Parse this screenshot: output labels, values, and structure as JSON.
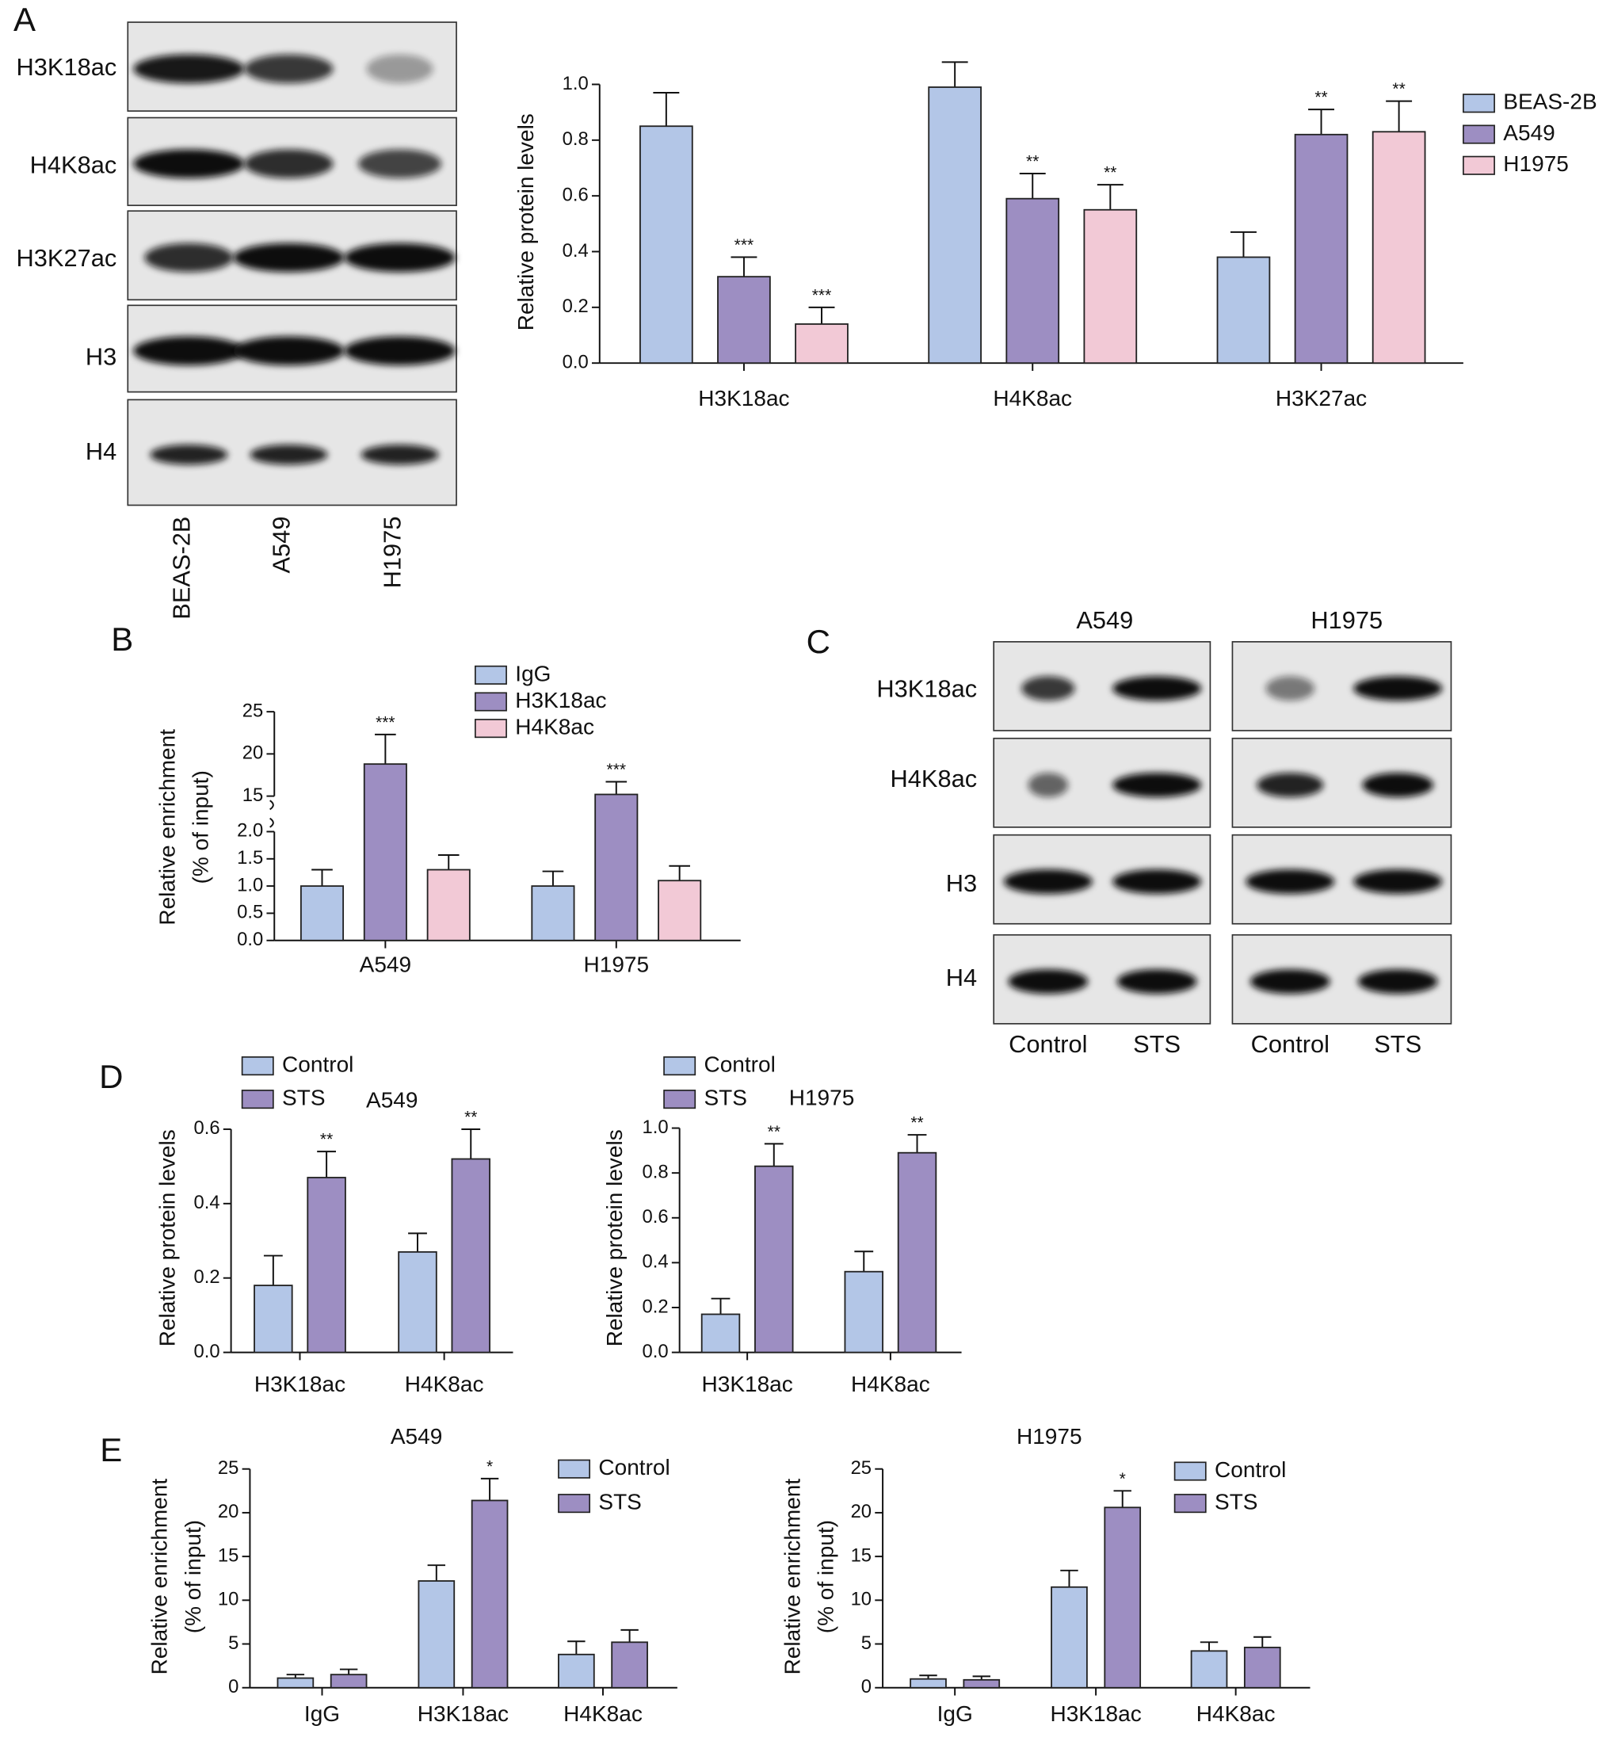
{
  "panels": [
    "A",
    "B",
    "C",
    "D",
    "E"
  ],
  "blots": [
    {
      "rows": [
        "H3K18ac",
        "H4K8ac",
        "H3K27ac",
        "H3",
        "H4"
      ],
      "lanes": [
        "BEAS-2B",
        "A549",
        "H1975"
      ]
    },
    {
      "groups": [
        "A549",
        "H1975"
      ],
      "rows": [
        "H3K18ac",
        "H4K8ac",
        "H3",
        "H4"
      ],
      "lanes": [
        "Control",
        "STS",
        "Control",
        "STS"
      ]
    }
  ],
  "chart_data": [
    {
      "type": "bar",
      "ylabel": [
        "Relative protein levels"
      ],
      "categories": [
        "H3K18ac",
        "H4K8ac",
        "H3K27ac"
      ],
      "series": [
        {
          "name": "BEAS-2B",
          "color": "#b3c6e7",
          "values": [
            0.85,
            0.99,
            0.38
          ],
          "errors": [
            0.12,
            0.09,
            0.09
          ]
        },
        {
          "name": "A549",
          "color": "#9d8ec2",
          "values": [
            0.31,
            0.59,
            0.82
          ],
          "errors": [
            0.07,
            0.09,
            0.09
          ],
          "annotations": [
            "***",
            "**",
            "**"
          ]
        },
        {
          "name": "H1975",
          "color": "#f2c9d6",
          "values": [
            0.14,
            0.55,
            0.83
          ],
          "errors": [
            0.06,
            0.09,
            0.11
          ],
          "annotations": [
            "***",
            "**",
            "**"
          ]
        }
      ],
      "ylim": [
        0,
        1.0
      ],
      "yticks": [
        {
          "value": 0,
          "label": "0.0"
        },
        {
          "value": 0.2,
          "label": "0.2"
        },
        {
          "value": 0.4,
          "label": "0.4"
        },
        {
          "value": 0.6,
          "label": "0.6"
        },
        {
          "value": 0.8,
          "label": "0.8"
        },
        {
          "value": 1.0,
          "label": "1.0"
        }
      ],
      "legend": "right"
    },
    {
      "type": "bar",
      "ylabel": [
        "Relative enrichment",
        "(% of input)"
      ],
      "categories": [
        "A549",
        "H1975"
      ],
      "series": [
        {
          "name": "IgG",
          "color": "#b3c6e7",
          "values": [
            1.0,
            1.0
          ],
          "errors": [
            0.3,
            0.27
          ]
        },
        {
          "name": "H3K18ac",
          "color": "#9d8ec2",
          "values": [
            18.8,
            15.2
          ],
          "errors": [
            3.5,
            1.5
          ],
          "annotations": [
            "***",
            "***"
          ]
        },
        {
          "name": "H4K8ac",
          "color": "#f2c9d6",
          "values": [
            1.3,
            1.1
          ],
          "errors": [
            0.27,
            0.27
          ]
        }
      ],
      "ylim": [
        0,
        25
      ],
      "ybreak": [
        2,
        15
      ],
      "yticks": [
        {
          "value": 0,
          "label": "0.0"
        },
        {
          "value": 0.5,
          "label": "0.5"
        },
        {
          "value": 1,
          "label": "1.0"
        },
        {
          "value": 1.5,
          "label": "1.5"
        },
        {
          "value": 2,
          "label": "2.0"
        },
        15,
        20,
        25
      ],
      "legend": "top"
    },
    {
      "type": "bar",
      "title": "A549",
      "ylabel": [
        "Relative protein levels"
      ],
      "categories": [
        "H3K18ac",
        "H4K8ac"
      ],
      "series": [
        {
          "name": "Control",
          "color": "#b3c6e7",
          "values": [
            0.18,
            0.27
          ],
          "errors": [
            0.08,
            0.05
          ]
        },
        {
          "name": "STS",
          "color": "#9d8ec2",
          "values": [
            0.47,
            0.52
          ],
          "errors": [
            0.07,
            0.08
          ],
          "annotations": [
            "**",
            "**"
          ]
        }
      ],
      "ylim": [
        0,
        0.6
      ],
      "yticks": [
        {
          "value": 0,
          "label": "0.0"
        },
        {
          "value": 0.2,
          "label": "0.2"
        },
        {
          "value": 0.4,
          "label": "0.4"
        },
        {
          "value": 0.6,
          "label": "0.6"
        }
      ],
      "legend": "top left"
    },
    {
      "type": "bar",
      "title": "H1975",
      "ylabel": [
        "Relative protein levels"
      ],
      "categories": [
        "H3K18ac",
        "H4K8ac"
      ],
      "series": [
        {
          "name": "Control",
          "color": "#b3c6e7",
          "values": [
            0.17,
            0.36
          ],
          "errors": [
            0.07,
            0.09
          ]
        },
        {
          "name": "STS",
          "color": "#9d8ec2",
          "values": [
            0.83,
            0.89
          ],
          "errors": [
            0.1,
            0.08
          ],
          "annotations": [
            "**",
            "**"
          ]
        }
      ],
      "ylim": [
        0,
        1.0
      ],
      "yticks": [
        {
          "value": 0,
          "label": "0.0"
        },
        {
          "value": 0.2,
          "label": "0.2"
        },
        {
          "value": 0.4,
          "label": "0.4"
        },
        {
          "value": 0.6,
          "label": "0.6"
        },
        {
          "value": 0.8,
          "label": "0.8"
        },
        {
          "value": 1.0,
          "label": "1.0"
        }
      ],
      "legend": "top left"
    },
    {
      "type": "bar",
      "title": "A549",
      "ylabel": [
        "Relative enrichment",
        "(% of input)"
      ],
      "categories": [
        "IgG",
        "H3K18ac",
        "H4K8ac"
      ],
      "series": [
        {
          "name": "Control",
          "color": "#b3c6e7",
          "values": [
            1.1,
            12.2,
            3.8
          ],
          "errors": [
            0.4,
            1.8,
            1.5
          ]
        },
        {
          "name": "STS",
          "color": "#9d8ec2",
          "values": [
            1.5,
            21.4,
            5.2
          ],
          "errors": [
            0.6,
            2.5,
            1.4
          ],
          "annotations": [
            null,
            "*",
            null
          ]
        }
      ],
      "ylim": [
        0,
        25
      ],
      "yticks": [
        0,
        5,
        10,
        15,
        20,
        25
      ],
      "legend": "top right"
    },
    {
      "type": "bar",
      "title": "H1975",
      "ylabel": [
        "Relative enrichment",
        "(% of input)"
      ],
      "categories": [
        "IgG",
        "H3K18ac",
        "H4K8ac"
      ],
      "series": [
        {
          "name": "Control",
          "color": "#b3c6e7",
          "values": [
            1.0,
            11.5,
            4.2
          ],
          "errors": [
            0.4,
            1.9,
            1.0
          ]
        },
        {
          "name": "STS",
          "color": "#9d8ec2",
          "values": [
            0.9,
            20.6,
            4.6
          ],
          "errors": [
            0.4,
            1.9,
            1.2
          ],
          "annotations": [
            null,
            "*",
            null
          ]
        }
      ],
      "ylim": [
        0,
        25
      ],
      "yticks": [
        0,
        5,
        10,
        15,
        20,
        25
      ],
      "legend": "top right"
    }
  ]
}
